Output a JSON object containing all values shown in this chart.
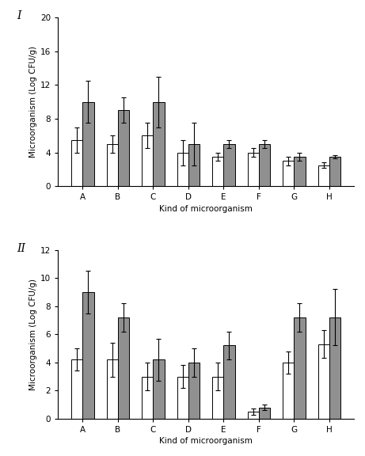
{
  "categories": [
    "A",
    "B",
    "C",
    "D",
    "E",
    "F",
    "G",
    "H"
  ],
  "panel1": {
    "label": "I",
    "ylim": [
      0,
      20
    ],
    "yticks": [
      0,
      4,
      8,
      12,
      16,
      20
    ],
    "white_vals": [
      5.5,
      5.0,
      6.0,
      4.0,
      3.5,
      4.0,
      3.0,
      2.5
    ],
    "gray_vals": [
      10.0,
      9.0,
      10.0,
      5.0,
      5.0,
      5.0,
      3.5,
      3.5
    ],
    "white_err": [
      1.5,
      1.0,
      1.5,
      1.5,
      0.5,
      0.5,
      0.5,
      0.3
    ],
    "gray_err": [
      2.5,
      1.5,
      3.0,
      2.5,
      0.5,
      0.5,
      0.5,
      0.2
    ]
  },
  "panel2": {
    "label": "II",
    "ylim": [
      0,
      12
    ],
    "yticks": [
      0,
      2,
      4,
      6,
      8,
      10,
      12
    ],
    "white_vals": [
      4.2,
      4.2,
      3.0,
      3.0,
      3.0,
      0.5,
      4.0,
      5.3
    ],
    "gray_vals": [
      9.0,
      7.2,
      4.2,
      4.0,
      5.2,
      0.8,
      7.2,
      7.2
    ],
    "white_err": [
      0.8,
      1.2,
      1.0,
      0.8,
      1.0,
      0.2,
      0.8,
      1.0
    ],
    "gray_err": [
      1.5,
      1.0,
      1.5,
      1.0,
      1.0,
      0.2,
      1.0,
      2.0
    ]
  },
  "xlabel": "Kind of microorganism",
  "ylabel": "Microorganism (Log CFU/g)",
  "bar_width": 0.32,
  "white_color": "#ffffff",
  "gray_color": "#909090",
  "edge_color": "#000000",
  "background_color": "#ffffff",
  "label_fontsize": 7.5,
  "tick_fontsize": 7.5,
  "panel_label_fontsize": 10
}
